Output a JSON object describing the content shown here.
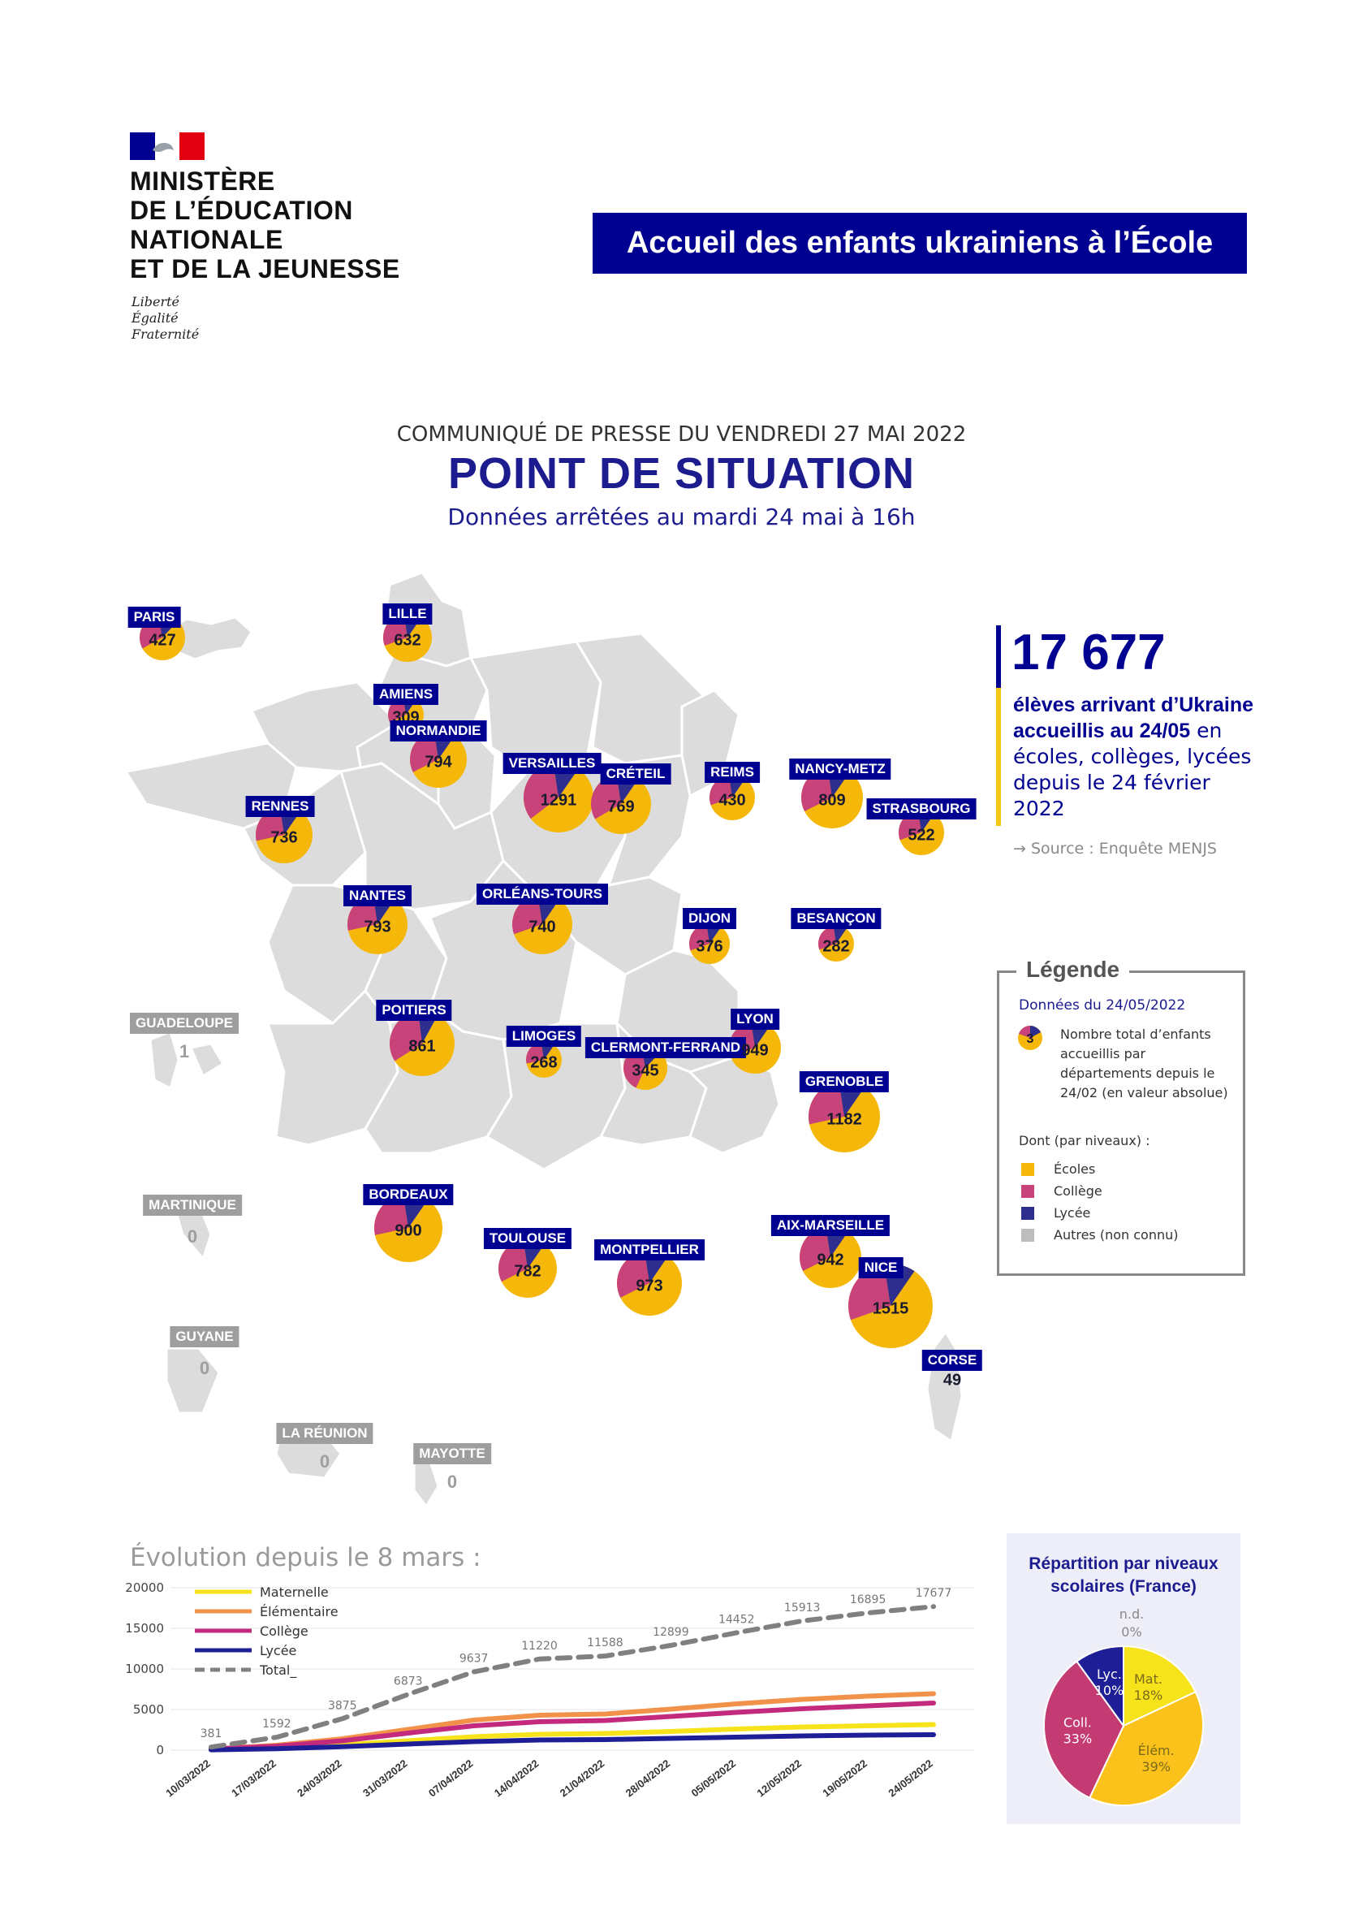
{
  "header": {
    "ministry_lines": [
      "MINISTÈRE",
      "DE L’ÉDUCATION",
      "NATIONALE",
      "ET DE LA JEUNESSE"
    ],
    "motto_lines": [
      "Liberté",
      "Égalité",
      "Fraternité"
    ],
    "banner": "Accueil des enfants ukrainiens à l’École"
  },
  "press_release": "COMMUNIQUÉ DE PRESSE DU VENDREDI 27 MAI 2022",
  "title": "POINT DE SITUATION",
  "subtitle": "Données arrêtées au mardi 24 mai à 16h",
  "key_figure": {
    "number": "17 677",
    "line_bold": "élèves arrivant d’Ukraine accueillis au 24/05",
    "line_rest": " en écoles, collèges, lycées depuis le 24 février 2022",
    "source": "→ Source : Enquête MENJS"
  },
  "colors": {
    "ecoles": "#f5b80a",
    "college": "#c8437a",
    "lycee": "#2e2e8e",
    "autres": "#bdbdbd",
    "map": "#dcdcdc",
    "navy": "#000091"
  },
  "academies": [
    {
      "name": "PARIS",
      "value": "427",
      "ecoles": 0.55,
      "college": 0.3,
      "lycee": 0.15
    },
    {
      "name": "LILLE",
      "value": "632",
      "ecoles": 0.6,
      "college": 0.28,
      "lycee": 0.12
    },
    {
      "name": "AMIENS",
      "value": "309",
      "ecoles": 0.58,
      "college": 0.3,
      "lycee": 0.12
    },
    {
      "name": "NORMANDIE",
      "value": "794",
      "ecoles": 0.58,
      "college": 0.3,
      "lycee": 0.12
    },
    {
      "name": "VERSAILLES",
      "value": "1291",
      "ecoles": 0.55,
      "college": 0.33,
      "lycee": 0.12
    },
    {
      "name": "CRÉTEIL",
      "value": "769",
      "ecoles": 0.57,
      "college": 0.31,
      "lycee": 0.12
    },
    {
      "name": "REIMS",
      "value": "430",
      "ecoles": 0.6,
      "college": 0.28,
      "lycee": 0.12
    },
    {
      "name": "NANCY-METZ",
      "value": "809",
      "ecoles": 0.58,
      "college": 0.3,
      "lycee": 0.12
    },
    {
      "name": "STRASBOURG",
      "value": "522",
      "ecoles": 0.6,
      "college": 0.28,
      "lycee": 0.12
    },
    {
      "name": "RENNES",
      "value": "736",
      "ecoles": 0.62,
      "college": 0.26,
      "lycee": 0.12
    },
    {
      "name": "NANTES",
      "value": "793",
      "ecoles": 0.62,
      "college": 0.26,
      "lycee": 0.12
    },
    {
      "name": "ORLÉANS-TOURS",
      "value": "740",
      "ecoles": 0.6,
      "college": 0.28,
      "lycee": 0.12
    },
    {
      "name": "DIJON",
      "value": "376",
      "ecoles": 0.6,
      "college": 0.28,
      "lycee": 0.12
    },
    {
      "name": "BESANÇON",
      "value": "282",
      "ecoles": 0.6,
      "college": 0.28,
      "lycee": 0.12
    },
    {
      "name": "POITIERS",
      "value": "861",
      "ecoles": 0.58,
      "college": 0.32,
      "lycee": 0.1
    },
    {
      "name": "LIMOGES",
      "value": "268",
      "ecoles": 0.62,
      "college": 0.26,
      "lycee": 0.12
    },
    {
      "name": "CLERMONT-FERRAND",
      "value": "345",
      "ecoles": 0.45,
      "college": 0.4,
      "lycee": 0.15
    },
    {
      "name": "LYON",
      "value": "949",
      "ecoles": 0.6,
      "college": 0.28,
      "lycee": 0.12
    },
    {
      "name": "GRENOBLE",
      "value": "1182",
      "ecoles": 0.62,
      "college": 0.26,
      "lycee": 0.12
    },
    {
      "name": "BORDEAUX",
      "value": "900",
      "ecoles": 0.62,
      "college": 0.26,
      "lycee": 0.12
    },
    {
      "name": "TOULOUSE",
      "value": "782",
      "ecoles": 0.58,
      "college": 0.3,
      "lycee": 0.12
    },
    {
      "name": "MONTPELLIER",
      "value": "973",
      "ecoles": 0.58,
      "college": 0.3,
      "lycee": 0.12
    },
    {
      "name": "AIX-MARSEILLE",
      "value": "942",
      "ecoles": 0.58,
      "college": 0.3,
      "lycee": 0.12
    },
    {
      "name": "NICE",
      "value": "1515",
      "ecoles": 0.6,
      "college": 0.28,
      "lycee": 0.12
    },
    {
      "name": "CORSE",
      "value": "49",
      "ecoles": 0,
      "college": 0,
      "lycee": 0
    },
    {
      "name": "GUADELOUPE",
      "value": "1",
      "ecoles": 0,
      "college": 0,
      "lycee": 0
    },
    {
      "name": "MARTINIQUE",
      "value": "0",
      "ecoles": 0,
      "college": 0,
      "lycee": 0
    },
    {
      "name": "GUYANE",
      "value": "0",
      "ecoles": 0,
      "college": 0,
      "lycee": 0
    },
    {
      "name": "LA RÉUNION",
      "value": "0",
      "ecoles": 0,
      "college": 0,
      "lycee": 0
    },
    {
      "name": "MAYOTTE",
      "value": "0",
      "ecoles": 0,
      "college": 0,
      "lycee": 0
    }
  ],
  "legend": {
    "title": "Légende",
    "date": "Données du 24/05/2022",
    "sample_value": "3",
    "description": "Nombre total d’enfants accueillis par départements depuis le 24/02 (en valeur absolue)",
    "dont": "Dont (par niveaux) :",
    "items": [
      "Écoles",
      "Collège",
      "Lycée",
      "Autres (non connu)"
    ]
  },
  "evolution_title": "Évolution depuis le 8 mars :",
  "chart_data": [
    {
      "type": "line",
      "x": [
        "10/03/2022",
        "17/03/2022",
        "24/03/2022",
        "31/03/2022",
        "07/04/2022",
        "14/04/2022",
        "21/04/2022",
        "28/04/2022",
        "05/05/2022",
        "12/05/2022",
        "19/05/2022",
        "24/05/2022"
      ],
      "series": [
        {
          "name": "Maternelle",
          "values": [
            60,
            280,
            650,
            1150,
            1650,
            1950,
            2050,
            2300,
            2600,
            2850,
            3000,
            3150
          ]
        },
        {
          "name": "Élémentaire",
          "values": [
            140,
            600,
            1400,
            2550,
            3700,
            4300,
            4450,
            5050,
            5700,
            6250,
            6650,
            6950
          ]
        },
        {
          "name": "Collège",
          "values": [
            120,
            500,
            1150,
            2100,
            3000,
            3500,
            3650,
            4150,
            4650,
            5100,
            5450,
            5800
          ]
        },
        {
          "name": "Lycée",
          "values": [
            40,
            180,
            420,
            750,
            1050,
            1250,
            1300,
            1450,
            1600,
            1750,
            1850,
            1900
          ]
        },
        {
          "name": "Total_",
          "values": [
            381,
            1592,
            3875,
            6873,
            9637,
            11220,
            11588,
            12899,
            14452,
            15913,
            16895,
            17677
          ]
        }
      ],
      "total_labels": [
        "381",
        "1592",
        "3875",
        "6873",
        "9637",
        "11220",
        "11588",
        "12899",
        "14452",
        "15913",
        "16895",
        "17677"
      ],
      "yticks": [
        "0",
        "5000",
        "10000",
        "15000",
        "20000"
      ],
      "ylim": [
        0,
        20000
      ],
      "grid": true,
      "legend_position": "top-left",
      "series_colors": [
        "#f6e31b",
        "#f2924a",
        "#c32a7d",
        "#1e1e96",
        "#808080"
      ]
    },
    {
      "type": "pie",
      "title": "Répartition par niveaux scolaires (France)",
      "slices": [
        {
          "label": "Mat.",
          "pct": "18%",
          "value": 18,
          "color": "#f6e31b"
        },
        {
          "label": "Élém.",
          "pct": "39%",
          "value": 39,
          "color": "#fbc21c"
        },
        {
          "label": "Coll.",
          "pct": "33%",
          "value": 33,
          "color": "#c43b73"
        },
        {
          "label": "Lyc.",
          "pct": "10%",
          "value": 10,
          "color": "#1e1e96"
        },
        {
          "label": "n.d.",
          "pct": "0%",
          "value": 0,
          "color": "#bdbdbd"
        }
      ]
    }
  ]
}
